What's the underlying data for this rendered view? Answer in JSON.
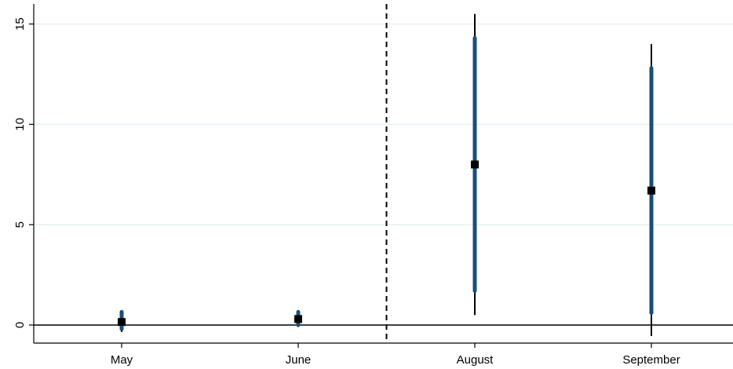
{
  "chart_data": {
    "type": "scatter",
    "title": "",
    "xlabel": "",
    "ylabel": "",
    "categories": [
      "May",
      "June",
      "August",
      "September"
    ],
    "ylim": [
      -0.9,
      16
    ],
    "yticks": [
      0,
      5,
      10,
      15
    ],
    "grid": true,
    "legend": "none",
    "reference_lines": {
      "horizontal_y": 0,
      "vertical_between": [
        "June",
        "August"
      ]
    },
    "series": [
      {
        "estimate": [
          0.15,
          0.3,
          8.0,
          6.7
        ],
        "ci_outer": [
          [
            -0.35,
            0.72
          ],
          [
            -0.1,
            0.72
          ],
          [
            0.5,
            15.5
          ],
          [
            -0.55,
            14.0
          ]
        ],
        "ci_inner": [
          [
            -0.2,
            0.65
          ],
          [
            0.0,
            0.65
          ],
          [
            1.7,
            14.3
          ],
          [
            0.6,
            12.8
          ]
        ]
      }
    ],
    "colors": {
      "marker": "#000000",
      "ci_outer": "#000000",
      "ci_inner": "#1a4e7a",
      "grid": "#e3eef3",
      "reference": "#000000"
    }
  }
}
